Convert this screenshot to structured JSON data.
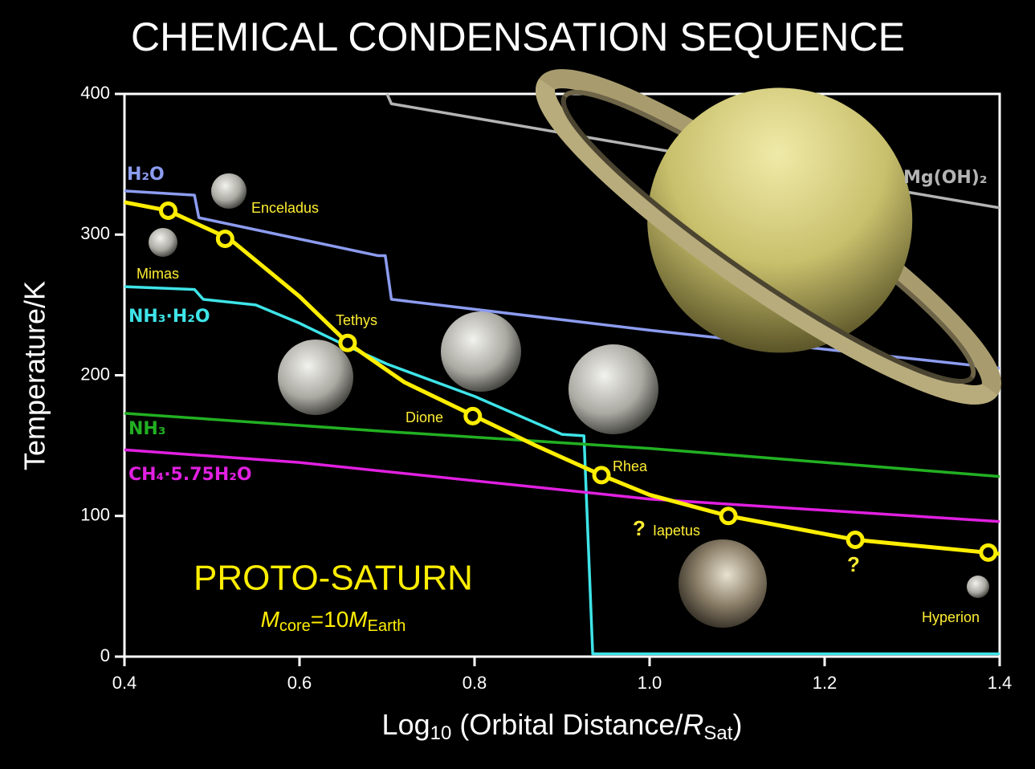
{
  "chart_data": {
    "type": "line",
    "title": "CHEMICAL CONDENSATION SEQUENCE",
    "ylabel": "Temperature/K",
    "xlabel_parts": [
      "Log",
      "10",
      " (Orbital Distance/",
      "R",
      "Sat",
      ")"
    ],
    "xlim": [
      0.4,
      1.4
    ],
    "ylim": [
      0,
      400
    ],
    "xticks": [
      0.4,
      0.6,
      0.8,
      {
        "value": 1,
        "label": "1.0"
      },
      1.2,
      1.4
    ],
    "yticks": [
      0,
      100,
      200,
      300,
      400
    ],
    "series": [
      {
        "name": "Mg(OH)₂",
        "color": "#b4b4b4",
        "x": [
          0.7,
          0.705,
          1.4
        ],
        "values": [
          400,
          393,
          319
        ]
      },
      {
        "name": "H₂O",
        "color": "#8c9cf0",
        "x": [
          0.4,
          0.48,
          0.485,
          0.69,
          0.698,
          0.705,
          1.0,
          1.4
        ],
        "values": [
          331,
          328,
          312,
          285,
          285,
          254,
          232,
          205
        ]
      },
      {
        "name": "NH₃·H₂O",
        "color": "#3ee4e8",
        "x": [
          0.4,
          0.48,
          0.49,
          0.55,
          0.6,
          0.65,
          0.7,
          0.8,
          0.9,
          0.925,
          0.935,
          1.4
        ],
        "values": [
          263,
          261,
          254,
          250,
          237,
          222,
          208,
          185,
          158,
          157,
          2,
          2
        ]
      },
      {
        "name": "NH₃",
        "color": "#22b022",
        "x": [
          0.4,
          0.7,
          1.0,
          1.4
        ],
        "values": [
          173,
          160,
          148,
          128
        ]
      },
      {
        "name": "CH₄·5.75H₂O",
        "color": "#e020e0",
        "x": [
          0.4,
          0.6,
          0.8,
          1.0,
          1.4
        ],
        "values": [
          147,
          138,
          125,
          112,
          96
        ]
      },
      {
        "color": "#ffee00",
        "x": [
          0.4,
          0.45,
          0.52,
          0.6,
          0.655,
          0.72,
          0.8,
          0.87,
          0.945,
          1.0,
          1.09,
          1.236,
          1.385,
          1.4
        ],
        "values": [
          323,
          317,
          297,
          256,
          223,
          195,
          171,
          150,
          129,
          115,
          100,
          83,
          74,
          73
        ]
      }
    ],
    "moons": {
      "x": [
        0.45,
        0.515,
        0.655,
        0.798,
        0.945,
        1.09,
        1.235,
        1.387
      ],
      "values": [
        317,
        297,
        223,
        171,
        129,
        100,
        83,
        74
      ]
    },
    "moon_labels": [
      "Enceladus",
      "Mimas",
      "Tethys",
      "Dione",
      "Rhea",
      "Iapetus",
      "Hyperion"
    ],
    "question_marks": [
      "?",
      "?"
    ],
    "inset_title": "PROTO-SATURN",
    "inset_parts": [
      "M",
      "core",
      "=10",
      "M",
      "Earth"
    ]
  }
}
